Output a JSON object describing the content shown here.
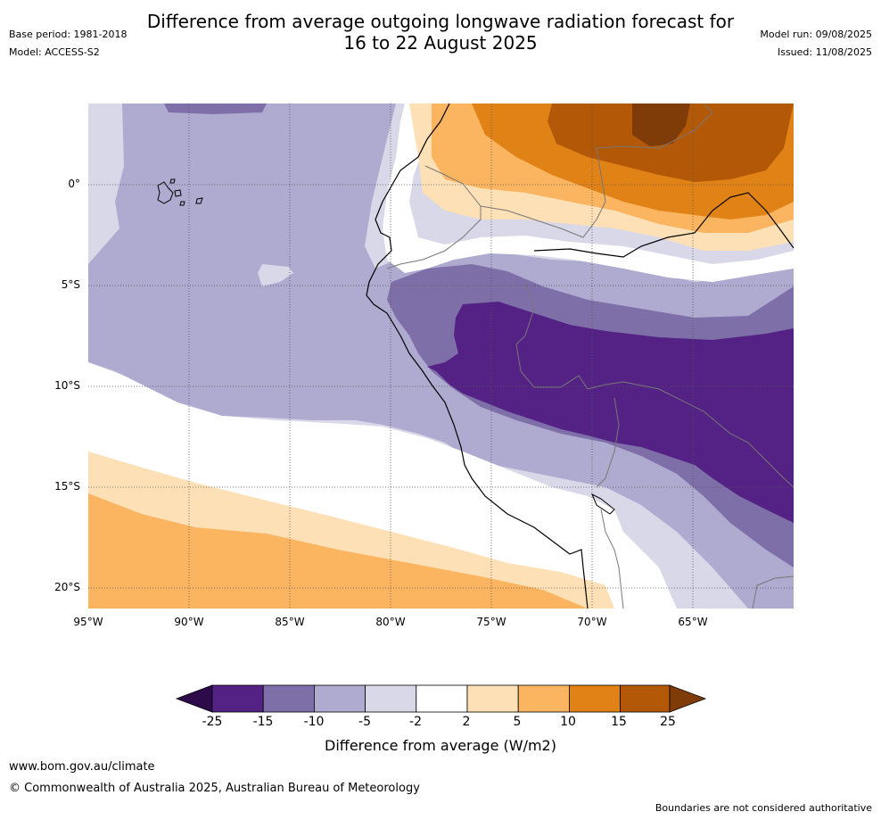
{
  "header": {
    "title_line1": "Difference from average outgoing longwave radiation forecast for",
    "title_line2": "16 to 22 August 2025",
    "base_period": "Base period: 1981-2018",
    "model": "Model: ACCESS-S2",
    "model_run": "Model run: 09/08/2025",
    "issued": "Issued: 11/08/2025"
  },
  "map": {
    "lat_labels": [
      "0°",
      "5°S",
      "10°S",
      "15°S",
      "20°S"
    ],
    "lon_labels": [
      "95°W",
      "90°W",
      "85°W",
      "80°W",
      "75°W",
      "70°W",
      "65°W"
    ]
  },
  "colorbar": {
    "title": "Difference from average (W/m2)",
    "ticks": [
      "-25",
      "-15",
      "-10",
      "-5",
      "-2",
      "2",
      "5",
      "10",
      "15",
      "25"
    ],
    "colors": {
      "below_-25": "#2d0a4a",
      "-25_-15": "#542285",
      "-15_-10": "#7e6fa9",
      "-10_-5": "#aeaad0",
      "-5_-2": "#d8d8e8",
      "-2_2": "#ffffff",
      "2_5": "#fde0b5",
      "5_10": "#fbb561",
      "10_15": "#e08216",
      "15_25": "#b35806",
      "above_25": "#7f3b08"
    }
  },
  "footer": {
    "website": "www.bom.gov.au/climate",
    "copyright": "© Commonwealth of Australia 2025, Australian Bureau of Meteorology",
    "disclaimer": "Boundaries are not considered authoritative"
  }
}
